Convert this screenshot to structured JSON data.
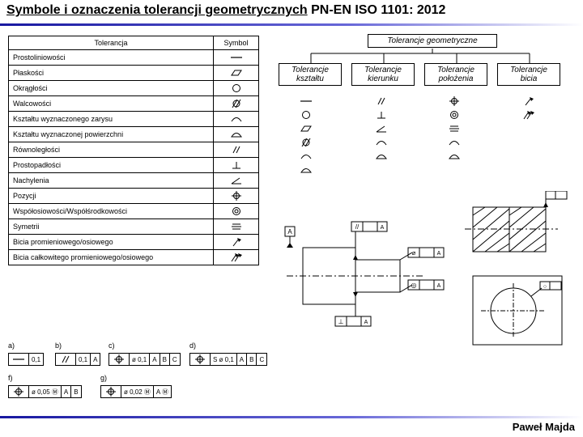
{
  "title": "Symbole i oznaczenia tolerancji geometrycznych",
  "title_suffix": " PN-EN ISO 1101: 2012",
  "author": "Paweł Majda",
  "table": {
    "headers": [
      "Tolerancja",
      "Symbol"
    ],
    "rows": [
      {
        "name": "Prostoliniowości",
        "sym": "straight"
      },
      {
        "name": "Płaskości",
        "sym": "flat"
      },
      {
        "name": "Okrągłości",
        "sym": "circle"
      },
      {
        "name": "Walcowości",
        "sym": "cyl"
      },
      {
        "name": "Kształtu wyznaczonego zarysu",
        "sym": "profile-line"
      },
      {
        "name": "Kształtu wyznaczonej powierzchni",
        "sym": "profile-surf"
      },
      {
        "name": "Równoległości",
        "sym": "para"
      },
      {
        "name": "Prostopadłości",
        "sym": "perp"
      },
      {
        "name": "Nachylenia",
        "sym": "angle"
      },
      {
        "name": "Pozycji",
        "sym": "pos"
      },
      {
        "name": "Współosiowości/Współśrodkowości",
        "sym": "conc"
      },
      {
        "name": "Symetrii",
        "sym": "symm"
      },
      {
        "name": "Bicia promieniowego/osiowego",
        "sym": "runout"
      },
      {
        "name": "Bicia całkowitego promieniowego/osiowego",
        "sym": "trunout"
      }
    ]
  },
  "hierarchy": {
    "root": "Tolerancje geometryczne",
    "children": [
      {
        "label": "Tolerancje kształtu",
        "syms": [
          "straight",
          "circle",
          "flat",
          "cyl",
          "profile-line",
          "profile-surf"
        ]
      },
      {
        "label": "Tolerancje kierunku",
        "syms": [
          "para",
          "perp",
          "angle",
          "profile-line",
          "profile-surf"
        ]
      },
      {
        "label": "Tolerancje położenia",
        "syms": [
          "pos",
          "conc",
          "symm",
          "profile-line",
          "profile-surf"
        ]
      },
      {
        "label": "Tolerancje bicia",
        "syms": [
          "runout",
          "trunout"
        ]
      }
    ]
  },
  "fcf_examples": [
    {
      "id": "a)",
      "cells": [
        "straight",
        "0,1"
      ]
    },
    {
      "id": "b)",
      "cells": [
        "para",
        "0,1",
        "A"
      ]
    },
    {
      "id": "c)",
      "cells": [
        "pos",
        "ø 0,1",
        "A",
        "B",
        "C"
      ]
    },
    {
      "id": "d)",
      "cells": [
        "pos",
        "S ø 0,1",
        "A",
        "B",
        "C"
      ]
    },
    {
      "id": "f)",
      "cells": [
        "pos",
        "ø 0,05 Ⓜ",
        "A",
        "B"
      ]
    },
    {
      "id": "g)",
      "cells": [
        "pos",
        "ø 0,02 Ⓜ",
        "A Ⓜ"
      ]
    }
  ],
  "colors": {
    "accent": "#2020a0",
    "text": "#000000",
    "bg": "#ffffff"
  }
}
